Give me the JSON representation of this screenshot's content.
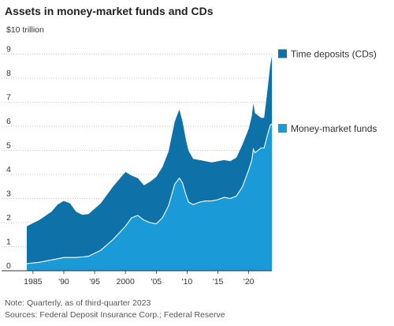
{
  "header": {
    "title": "Assets in money-market funds and CDs",
    "unit_label": "$10 trillion"
  },
  "footer": {
    "note": "Note: Quarterly, as of third-quarter 2023",
    "sources": "Sources: Federal Deposit Insurance Corp.; Federal Reserve"
  },
  "chart_data": {
    "type": "area",
    "stacked": true,
    "xlim": [
      1984,
      2023.75
    ],
    "ylim": [
      0,
      10
    ],
    "grid": true,
    "x_ticks": [
      {
        "value": 1985,
        "label": "1985"
      },
      {
        "value": 1990,
        "label": "'90"
      },
      {
        "value": 1995,
        "label": "'95"
      },
      {
        "value": 2000,
        "label": "2000"
      },
      {
        "value": 2005,
        "label": "'05"
      },
      {
        "value": 2010,
        "label": "'10"
      },
      {
        "value": 2015,
        "label": "'15"
      },
      {
        "value": 2020,
        "label": "'20"
      }
    ],
    "y_ticks": [
      0,
      1,
      2,
      3,
      4,
      5,
      6,
      7,
      8,
      9
    ],
    "series": [
      {
        "name": "Money-market funds",
        "color": "#1a9ad6",
        "points": [
          [
            1984,
            0.3
          ],
          [
            1986,
            0.35
          ],
          [
            1988,
            0.45
          ],
          [
            1990,
            0.55
          ],
          [
            1992,
            0.55
          ],
          [
            1994,
            0.6
          ],
          [
            1996,
            0.85
          ],
          [
            1998,
            1.3
          ],
          [
            2000,
            1.85
          ],
          [
            2001,
            2.2
          ],
          [
            2002,
            2.3
          ],
          [
            2003,
            2.1
          ],
          [
            2004,
            2.0
          ],
          [
            2005,
            1.95
          ],
          [
            2006,
            2.2
          ],
          [
            2007,
            2.7
          ],
          [
            2008,
            3.6
          ],
          [
            2008.75,
            3.85
          ],
          [
            2009.25,
            3.65
          ],
          [
            2009.75,
            3.2
          ],
          [
            2010.25,
            2.85
          ],
          [
            2011,
            2.75
          ],
          [
            2012,
            2.85
          ],
          [
            2013,
            2.9
          ],
          [
            2014,
            2.9
          ],
          [
            2015,
            2.95
          ],
          [
            2016,
            3.05
          ],
          [
            2017,
            3.0
          ],
          [
            2018,
            3.1
          ],
          [
            2019,
            3.5
          ],
          [
            2020,
            4.2
          ],
          [
            2020.5,
            4.6
          ],
          [
            2020.75,
            5.05
          ],
          [
            2021,
            4.9
          ],
          [
            2021.5,
            5.0
          ],
          [
            2022,
            5.1
          ],
          [
            2022.5,
            5.1
          ],
          [
            2023,
            5.6
          ],
          [
            2023.5,
            6.05
          ],
          [
            2023.75,
            6.1
          ]
        ]
      },
      {
        "name": "Time deposits (CDs)",
        "color": "#0e72a8",
        "points": [
          [
            1984,
            1.55
          ],
          [
            1986,
            1.75
          ],
          [
            1988,
            2.0
          ],
          [
            1989,
            2.25
          ],
          [
            1990,
            2.35
          ],
          [
            1991,
            2.25
          ],
          [
            1992,
            1.9
          ],
          [
            1993,
            1.75
          ],
          [
            1994,
            1.75
          ],
          [
            1996,
            1.95
          ],
          [
            1998,
            2.2
          ],
          [
            2000,
            2.25
          ],
          [
            2001,
            1.75
          ],
          [
            2002,
            1.55
          ],
          [
            2003,
            1.45
          ],
          [
            2004,
            1.7
          ],
          [
            2005,
            1.95
          ],
          [
            2006,
            2.1
          ],
          [
            2007,
            2.25
          ],
          [
            2008,
            2.6
          ],
          [
            2008.75,
            2.85
          ],
          [
            2009.25,
            2.55
          ],
          [
            2010,
            2.2
          ],
          [
            2011,
            1.9
          ],
          [
            2012,
            1.75
          ],
          [
            2013,
            1.65
          ],
          [
            2014,
            1.6
          ],
          [
            2015,
            1.6
          ],
          [
            2016,
            1.55
          ],
          [
            2017,
            1.55
          ],
          [
            2018,
            1.6
          ],
          [
            2019,
            1.75
          ],
          [
            2020,
            1.7
          ],
          [
            2020.75,
            1.9
          ],
          [
            2021,
            1.65
          ],
          [
            2021.5,
            1.45
          ],
          [
            2022,
            1.25
          ],
          [
            2022.5,
            1.25
          ],
          [
            2023,
            1.8
          ],
          [
            2023.5,
            2.5
          ],
          [
            2023.75,
            2.8
          ]
        ]
      }
    ],
    "legend": [
      {
        "label": "Time deposits (CDs)",
        "color": "#0e72a8"
      },
      {
        "label": "Money-market funds",
        "color": "#1a9ad6"
      }
    ],
    "legend_placement": "right"
  }
}
